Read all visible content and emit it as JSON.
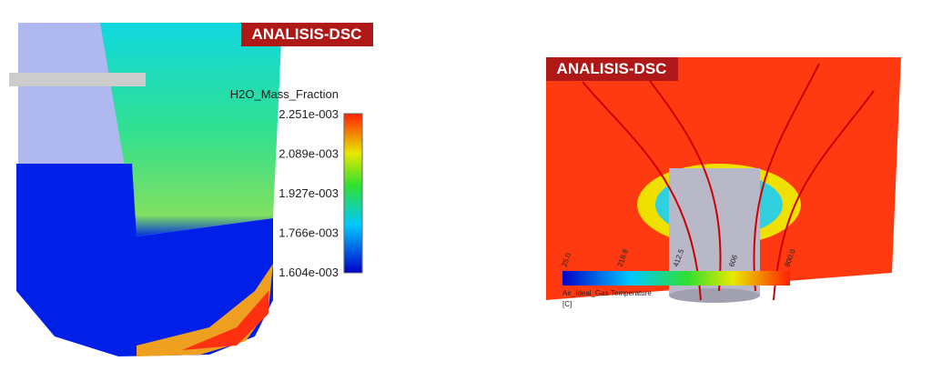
{
  "left_panel": {
    "logo": "ANALISIS-DSC",
    "legend": {
      "title": "H2O_Mass_Fraction",
      "labels": [
        "2.251e-003",
        "2.089e-003",
        "1.927e-003",
        "1.766e-003",
        "1.604e-003"
      ]
    }
  },
  "right_panel": {
    "logo": "ANALISIS-DSC",
    "legend": {
      "title": "Air_Ideal_Gas.Temperature",
      "unit": "[C]",
      "labels": [
        "25.0",
        "218.8",
        "412.5",
        "606",
        "800.0"
      ]
    }
  }
}
